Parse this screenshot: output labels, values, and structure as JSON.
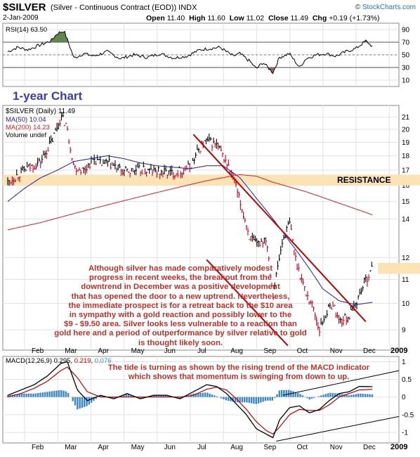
{
  "header": {
    "symbol": "$SILVER",
    "description": "(Silver - Continuous Contract (EOD))",
    "exchange": "INDX",
    "date": "2-Jan-2009",
    "open_label": "Open",
    "open": "11.40",
    "high_label": "High",
    "high": "11.60",
    "low_label": "Low",
    "low": "11.02",
    "close_label": "Close",
    "close": "11.49",
    "chg_label": "Chg",
    "chg": "+0.19 (+1.73%)",
    "brand": "StockCharts.com",
    "brand_prefix": "© "
  },
  "colors": {
    "price": "#000000",
    "down": "#c0001e",
    "ma50": "#1f1f9e",
    "ma200": "#d61f1f",
    "trend": "#c00000",
    "resistance": "#fbe3b5",
    "macd_hist": "#3b87c9",
    "rsi_fill_hi": "#4f7a3a",
    "rsi_fill_lo": "#8c5a5a",
    "annotation": "#c0302a",
    "chart_title": "#3b3bb0"
  },
  "rsi": {
    "label": "RSI(14) 63.50",
    "ticks": [
      "90",
      "70",
      "50",
      "30",
      "10"
    ]
  },
  "price_panel": {
    "chart_title": "1-year Chart",
    "legend_main": "$SILVER (Daily) 11.49",
    "legend_ma50": "MA(50) 10.04",
    "legend_ma200": "MA(200) 14.23",
    "legend_volume": "Volume undef",
    "resistance_label": "RESISTANCE",
    "annotation": [
      "Although silver has made comparatively modest",
      "progress in recent weeks, the breakout from the",
      "downtrend in December was a positive development",
      "that has opened the door to a new uptrend. Nevertheless,",
      "the immediate prospect is for a retreat back to the $10 area",
      "in sympathy with a gold reaction and possibly lower to the",
      "$9 - $9.50 area. Silver looks less vulnerable to a reaction than",
      "gold here and a period of outperformance by silver relative to gold",
      "is thought likely soon."
    ]
  },
  "macd_panel": {
    "legend_prefix": "MACD(12,26,9) 0.295, ",
    "legend_signal": "0.219",
    "legend_sep": ", ",
    "legend_hist": "0.076",
    "annotation": [
      "The tide is turning as shown by the rising trend of the MACD indicator",
      "which shows that momentum is swinging from down to up."
    ]
  },
  "chart_data": {
    "type": "line",
    "title": "$SILVER (Silver - Continuous Contract (EOD)) INDX",
    "x_ticks": [
      "Feb",
      "Mar",
      "Apr",
      "May",
      "Jun",
      "Jul",
      "Aug",
      "Sep",
      "Oct",
      "Nov",
      "Dec",
      "2009"
    ],
    "price_axis": {
      "ylim": [
        8.3,
        22
      ],
      "log": true,
      "ticks": [
        9,
        10,
        11,
        12,
        14,
        15,
        16,
        17,
        18,
        19,
        20,
        21
      ]
    },
    "price_series": {
      "name": "$SILVER (Daily)",
      "months": [
        0,
        0.5,
        1,
        1.35,
        1.6,
        1.75,
        2,
        2.3,
        2.6,
        2.8,
        3,
        3.5,
        4,
        4.5,
        5,
        5.5,
        5.8,
        6,
        6.3,
        6.6,
        6.8,
        7,
        7.3,
        7.5,
        7.8,
        8,
        8.3,
        8.5,
        8.7,
        9,
        9.2,
        9.4,
        9.6,
        9.8,
        10,
        10.3,
        10.5,
        10.8,
        11
      ],
      "values": [
        16.2,
        17.0,
        17.6,
        19.2,
        21.0,
        20.5,
        17.2,
        17.0,
        17.8,
        17.4,
        17.5,
        16.9,
        17.0,
        16.9,
        16.8,
        17.2,
        18.6,
        19.1,
        18.8,
        17.5,
        16.5,
        15.0,
        13.0,
        12.6,
        13.0,
        10.3,
        12.9,
        13.8,
        11.8,
        10.4,
        9.9,
        9.0,
        9.6,
        10.0,
        9.3,
        9.5,
        10.0,
        11.0,
        11.49
      ]
    },
    "ma50": {
      "name": "MA(50)",
      "months": [
        0,
        0.5,
        1,
        1.5,
        2,
        2.5,
        3,
        3.5,
        4,
        4.5,
        5,
        5.5,
        6,
        6.5,
        7,
        7.5,
        8,
        8.5,
        9,
        9.5,
        10,
        10.5,
        11
      ],
      "values": [
        15.0,
        15.8,
        16.5,
        17.0,
        17.6,
        17.8,
        18.0,
        17.8,
        17.5,
        17.3,
        17.2,
        17.1,
        17.3,
        17.3,
        16.5,
        15.2,
        14.0,
        12.8,
        11.7,
        10.6,
        10.1,
        9.95,
        10.04
      ]
    },
    "ma200": {
      "name": "MA(200)",
      "months": [
        0,
        1,
        2,
        3,
        4,
        5,
        6,
        7,
        7.5,
        8,
        9,
        10,
        11
      ],
      "values": [
        13.4,
        13.8,
        14.3,
        14.8,
        15.3,
        15.8,
        16.3,
        16.7,
        16.6,
        16.2,
        15.6,
        14.9,
        14.23
      ]
    },
    "resistance_band": [
      16.0,
      16.7
    ],
    "rsi_series": {
      "ylim": [
        0,
        100
      ],
      "ticks": [
        10,
        30,
        50,
        70,
        90
      ],
      "months": [
        0,
        0.3,
        0.6,
        1,
        1.3,
        1.5,
        1.7,
        2,
        2.3,
        2.6,
        3,
        3.4,
        3.8,
        4.2,
        4.6,
        5,
        5.4,
        5.8,
        6.1,
        6.4,
        6.8,
        7,
        7.3,
        7.5,
        7.7,
        8,
        8.2,
        8.5,
        8.8,
        9,
        9.3,
        9.6,
        9.9,
        10.2,
        10.5,
        10.8,
        11
      ],
      "values": [
        55,
        62,
        58,
        66,
        72,
        84,
        88,
        45,
        52,
        48,
        55,
        44,
        50,
        46,
        52,
        45,
        48,
        58,
        60,
        62,
        48,
        52,
        40,
        28,
        38,
        22,
        46,
        52,
        30,
        44,
        50,
        52,
        48,
        55,
        60,
        72,
        63.5
      ]
    },
    "macd_series": {
      "ylim": [
        -1.3,
        1.15
      ],
      "ticks": [
        1.0,
        0.5,
        0.0,
        -0.5,
        -1.0
      ],
      "months": [
        0,
        0.4,
        0.8,
        1.2,
        1.6,
        1.8,
        2.1,
        2.4,
        2.8,
        3.2,
        3.6,
        4.0,
        4.4,
        4.8,
        5.2,
        5.6,
        6.0,
        6.3,
        6.6,
        6.9,
        7.2,
        7.5,
        7.8,
        8.0,
        8.2,
        8.5,
        8.8,
        9.1,
        9.4,
        9.7,
        10.0,
        10.3,
        10.6,
        11
      ],
      "macd": [
        0.05,
        0.2,
        0.35,
        0.6,
        0.95,
        1.0,
        0.2,
        -0.1,
        0.05,
        -0.05,
        0.1,
        -0.05,
        0.05,
        0.05,
        -0.05,
        0.15,
        0.35,
        0.3,
        0.1,
        -0.2,
        -0.5,
        -0.9,
        -1.05,
        -1.15,
        -0.65,
        -0.3,
        -0.25,
        -0.45,
        -0.35,
        -0.1,
        0.1,
        0.15,
        0.3,
        0.295
      ],
      "signal": [
        0.0,
        0.1,
        0.25,
        0.45,
        0.75,
        0.85,
        0.55,
        0.15,
        0.0,
        0.0,
        0.0,
        0.0,
        0.0,
        0.0,
        0.0,
        0.05,
        0.22,
        0.28,
        0.2,
        -0.05,
        -0.35,
        -0.7,
        -0.95,
        -1.05,
        -0.85,
        -0.5,
        -0.35,
        -0.38,
        -0.38,
        -0.22,
        0.0,
        0.1,
        0.2,
        0.219
      ],
      "histogram_last": 0.076
    }
  }
}
